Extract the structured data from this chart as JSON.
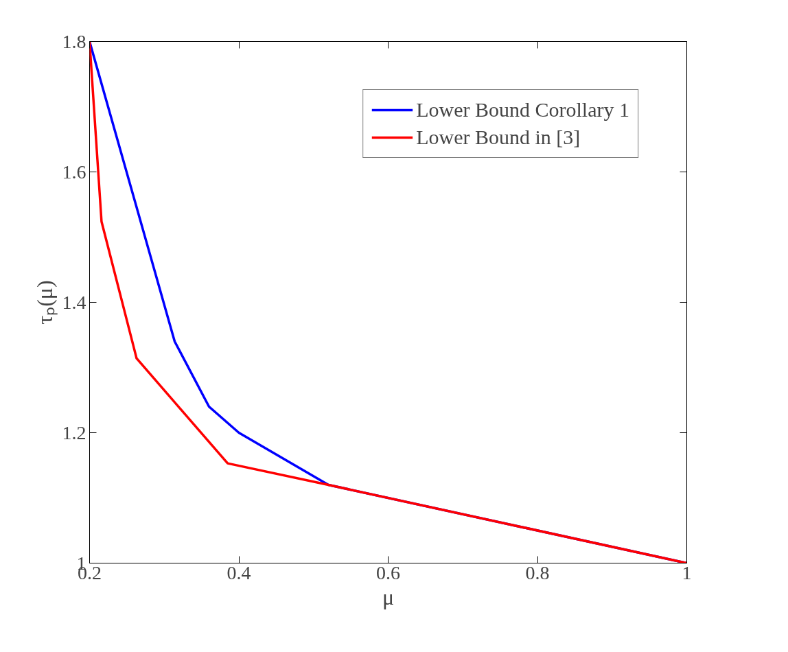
{
  "chart_data": {
    "type": "line",
    "xlabel": "μ",
    "ylabel": "τₚ(μ)",
    "xlim": [
      0.2,
      1
    ],
    "xticks": [
      0.2,
      0.4,
      0.6,
      0.8,
      1
    ],
    "ylim": [
      1,
      1.8
    ],
    "yticks": [
      1,
      1.2,
      1.4,
      1.6,
      1.8
    ],
    "grid": false,
    "legend": "top right",
    "line_style": "solid",
    "series": [
      {
        "name": "Lower Bound Corollary 1",
        "color": "#0000ff",
        "x": [
          0.2,
          0.314,
          0.36,
          0.4,
          0.52,
          1
        ],
        "values": [
          1.8,
          1.34,
          1.24,
          1.2,
          1.12,
          1
        ]
      },
      {
        "name": "Lower Bound in [3]",
        "color": "#ff0000",
        "x": [
          0.2,
          0.216,
          0.263,
          0.385,
          0.52,
          1
        ],
        "values": [
          1.8,
          1.524,
          1.314,
          1.153,
          1.12,
          1
        ]
      }
    ]
  }
}
